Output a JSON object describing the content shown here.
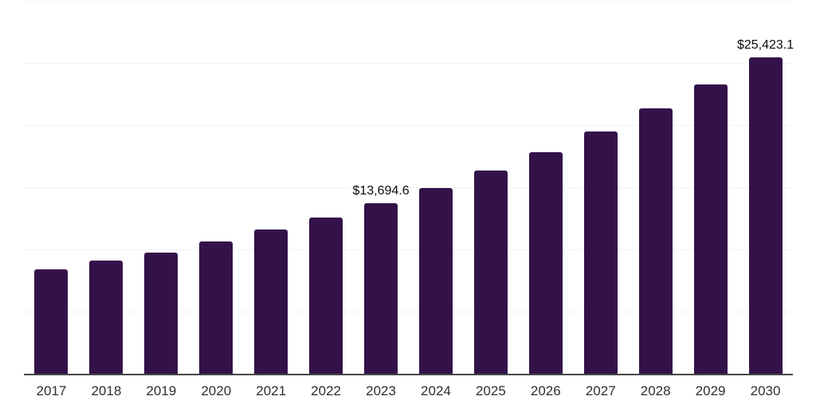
{
  "chart_data": {
    "type": "bar",
    "title": "",
    "xlabel": "",
    "ylabel": "",
    "categories": [
      "2017",
      "2018",
      "2019",
      "2020",
      "2021",
      "2022",
      "2023",
      "2024",
      "2025",
      "2026",
      "2027",
      "2028",
      "2029",
      "2030"
    ],
    "values": [
      8410,
      9110,
      9760,
      10660,
      11580,
      12590,
      13694.6,
      14950,
      16350,
      17850,
      19500,
      21350,
      23300,
      25423.1
    ],
    "labeled_points": [
      {
        "category": "2023",
        "index": 6,
        "text": "$13,694.6"
      },
      {
        "category": "2030",
        "index": 13,
        "text": "$25,423.1"
      }
    ],
    "ylim": [
      0,
      30000
    ],
    "gridline_step": 5000,
    "grid": true,
    "legend": false,
    "y_axis_labels_visible": false,
    "colors": {
      "bar": "#33124a",
      "gridline": "#f3f3f3",
      "axis_line": "#474747",
      "tick_label": "#2f2f2f",
      "data_label": "#0d0d0d",
      "background": "#ffffff"
    }
  }
}
